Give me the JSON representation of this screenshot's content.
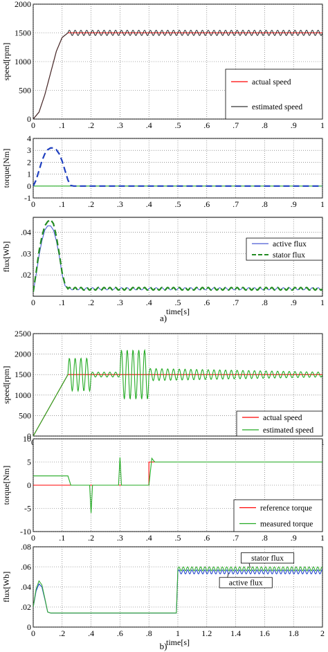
{
  "captions": {
    "a": "a)",
    "b": "b)"
  },
  "chart_data": [
    {
      "id": "a1",
      "type": "line",
      "ylabel": "speed[rpm]",
      "xlabel": "",
      "xlim": [
        0,
        1
      ],
      "ylim": [
        0,
        2000
      ],
      "xticks": [
        0,
        0.1,
        0.2,
        0.3,
        0.4,
        0.5,
        0.6,
        0.7,
        0.8,
        0.9,
        1
      ],
      "yticks": [
        0,
        500,
        1000,
        1500,
        2000
      ],
      "grid": true,
      "legend_position": "bottom-right",
      "series": [
        {
          "name": "actual speed",
          "color": "#ff0000",
          "style": "solid",
          "x": [
            0,
            0.02,
            0.04,
            0.06,
            0.08,
            0.1,
            0.12,
            1.0
          ],
          "y": [
            0,
            120,
            420,
            800,
            1180,
            1420,
            1500,
            1500
          ]
        },
        {
          "name": "estimated speed",
          "color": "#333333",
          "style": "solid",
          "x": [
            0,
            0.02,
            0.04,
            0.06,
            0.08,
            0.1,
            0.12,
            1.0
          ],
          "y": [
            0,
            120,
            420,
            800,
            1180,
            1420,
            1500,
            1500
          ],
          "ripple": {
            "from": 0.12,
            "to": 1.0,
            "period": 0.02,
            "amplitude": 45
          }
        }
      ]
    },
    {
      "id": "a2",
      "type": "line",
      "ylabel": "torque[Nm]",
      "xlabel": "",
      "xlim": [
        0,
        1
      ],
      "ylim": [
        -1,
        4
      ],
      "xticks": [
        0,
        0.1,
        0.2,
        0.3,
        0.4,
        0.5,
        0.6,
        0.7,
        0.8,
        0.9,
        1
      ],
      "yticks": [
        -1,
        0,
        1,
        2,
        3,
        4
      ],
      "grid": true,
      "legend_position": "none",
      "series": [
        {
          "name": "",
          "color": "#22aa22",
          "style": "solid",
          "x": [
            0,
            1.0
          ],
          "y": [
            0,
            0
          ]
        },
        {
          "name": "",
          "color": "#1f3fbf",
          "style": "dashed",
          "x": [
            0,
            0.01,
            0.02,
            0.03,
            0.04,
            0.05,
            0.06,
            0.07,
            0.08,
            0.09,
            0.1,
            0.11,
            0.12,
            0.13,
            0.14,
            1.0
          ],
          "y": [
            0,
            0.5,
            1.3,
            2.1,
            2.7,
            3.05,
            3.2,
            3.2,
            3.05,
            2.7,
            2.1,
            1.3,
            0.5,
            0.05,
            0,
            0
          ]
        }
      ]
    },
    {
      "id": "a3",
      "type": "line",
      "ylabel": "flux[Wb]",
      "xlabel": "time[s]",
      "xlim": [
        0,
        1
      ],
      "ylim": [
        0.01,
        0.047
      ],
      "xticks": [
        0,
        0.1,
        0.2,
        0.3,
        0.4,
        0.5,
        0.6,
        0.7,
        0.8,
        0.9,
        1
      ],
      "yticks": [
        0.02,
        0.03,
        0.04
      ],
      "grid": true,
      "legend_position": "top-right",
      "series": [
        {
          "name": "active flux",
          "color": "#4a5bd4",
          "style": "solid",
          "x": [
            0,
            0.01,
            0.02,
            0.03,
            0.04,
            0.05,
            0.06,
            0.07,
            0.08,
            0.09,
            0.1,
            0.11,
            0.12,
            1.0
          ],
          "y": [
            0.012,
            0.02,
            0.029,
            0.036,
            0.041,
            0.043,
            0.043,
            0.041,
            0.036,
            0.029,
            0.02,
            0.015,
            0.0135,
            0.0135
          ],
          "ripple": {
            "from": 0.12,
            "to": 1.0,
            "period": 0.02,
            "amplitude": 0.0005
          }
        },
        {
          "name": "stator flux",
          "color": "#228b22",
          "style": "dashed",
          "x": [
            0,
            0.01,
            0.02,
            0.03,
            0.04,
            0.05,
            0.06,
            0.07,
            0.08,
            0.09,
            0.1,
            0.11,
            0.12,
            1.0
          ],
          "y": [
            0.012,
            0.021,
            0.031,
            0.038,
            0.043,
            0.045,
            0.046,
            0.044,
            0.038,
            0.03,
            0.021,
            0.0155,
            0.0135,
            0.0135
          ],
          "ripple": {
            "from": 0.12,
            "to": 1.0,
            "period": 0.02,
            "amplitude": 0.0006
          }
        }
      ]
    },
    {
      "id": "b1",
      "type": "line",
      "ylabel": "speed[rpm]",
      "xlabel": "",
      "xlim": [
        0,
        1
      ],
      "ylim": [
        0,
        2500
      ],
      "xticks": [
        0,
        0.1,
        0.2,
        0.3,
        0.4,
        0.5,
        0.6,
        0.7,
        0.8,
        0.9,
        1
      ],
      "yticks": [
        0,
        500,
        1000,
        1500,
        2000,
        2500
      ],
      "grid": true,
      "legend_position": "bottom-right",
      "series": [
        {
          "name": "actual speed",
          "color": "#ff0000",
          "style": "solid",
          "x": [
            0,
            0.12,
            1.0
          ],
          "y": [
            0,
            1500,
            1500
          ]
        },
        {
          "name": "estimated speed",
          "color": "#22aa22",
          "style": "solid",
          "x": [
            0,
            0.12,
            1.0
          ],
          "y": [
            0,
            1500,
            1500
          ],
          "bursts": [
            {
              "from": 0.12,
              "to": 0.2,
              "period": 0.02,
              "amplitude": 400
            },
            {
              "from": 0.2,
              "to": 0.3,
              "period": 0.02,
              "amplitude": 60
            },
            {
              "from": 0.3,
              "to": 0.4,
              "period": 0.02,
              "amplitude": 600
            },
            {
              "from": 0.4,
              "to": 1.0,
              "period": 0.02,
              "amplitude": 150,
              "decay_to": 60
            }
          ]
        }
      ]
    },
    {
      "id": "b2",
      "type": "line",
      "ylabel": "torque[Nm]",
      "xlabel": "",
      "xlim": [
        0,
        1
      ],
      "ylim": [
        -10,
        10
      ],
      "xticks": [
        0,
        0.1,
        0.2,
        0.3,
        0.4,
        0.5,
        0.6,
        0.7,
        0.8,
        0.9,
        1
      ],
      "yticks": [
        -10,
        -5,
        0,
        5,
        10
      ],
      "grid": true,
      "legend_position": "bottom-right",
      "series": [
        {
          "name": "reference torque",
          "color": "#ff0000",
          "style": "solid",
          "x": [
            0,
            0.4,
            0.4,
            1.0
          ],
          "y": [
            0,
            0,
            5,
            5
          ]
        },
        {
          "name": "measured  torque",
          "color": "#22aa22",
          "style": "solid",
          "x": [
            0,
            0.12,
            0.13,
            0.14,
            0.195,
            0.2,
            0.205,
            0.295,
            0.3,
            0.305,
            0.4,
            0.41,
            0.42,
            1.0
          ],
          "y": [
            2,
            2,
            0,
            0,
            0,
            -6,
            0,
            0,
            6,
            0,
            0,
            5.8,
            5,
            5
          ]
        }
      ]
    },
    {
      "id": "b3",
      "type": "line",
      "ylabel": "flux[Wb]",
      "xlabel": "time[s]",
      "xlim": [
        0,
        2
      ],
      "ylim": [
        0,
        0.08
      ],
      "xticks": [
        0,
        0.2,
        0.4,
        0.6,
        0.8,
        1,
        1.2,
        1.4,
        1.6,
        1.8,
        2
      ],
      "yticks": [
        0,
        0.02,
        0.04,
        0.06,
        0.08
      ],
      "grid": true,
      "legend_position": "annotations",
      "series": [
        {
          "name": "active flux",
          "color": "#2244cc",
          "style": "solid",
          "x": [
            0,
            0.02,
            0.04,
            0.06,
            0.08,
            0.1,
            0.12,
            0.99,
            1.0,
            2.0
          ],
          "y": [
            0.02,
            0.036,
            0.043,
            0.04,
            0.028,
            0.015,
            0.014,
            0.014,
            0.055,
            0.055
          ],
          "ripple": {
            "from": 1.0,
            "to": 2.0,
            "period": 0.03,
            "amplitude": 0.002
          }
        },
        {
          "name": "stator flux",
          "color": "#33aa33",
          "style": "solid",
          "x": [
            0,
            0.02,
            0.04,
            0.06,
            0.08,
            0.1,
            0.12,
            0.99,
            1.0,
            2.0
          ],
          "y": [
            0.02,
            0.038,
            0.046,
            0.042,
            0.029,
            0.015,
            0.014,
            0.014,
            0.058,
            0.058
          ],
          "ripple": {
            "from": 1.0,
            "to": 2.0,
            "period": 0.03,
            "amplitude": 0.002
          }
        }
      ],
      "annotations": [
        {
          "text": "stator flux",
          "x": 1.62,
          "y": 0.0685,
          "arrow_to": [
            1.5,
            0.059
          ]
        },
        {
          "text": "active flux",
          "x": 1.47,
          "y": 0.044,
          "arrow_to": [
            1.35,
            0.054
          ]
        }
      ]
    }
  ]
}
